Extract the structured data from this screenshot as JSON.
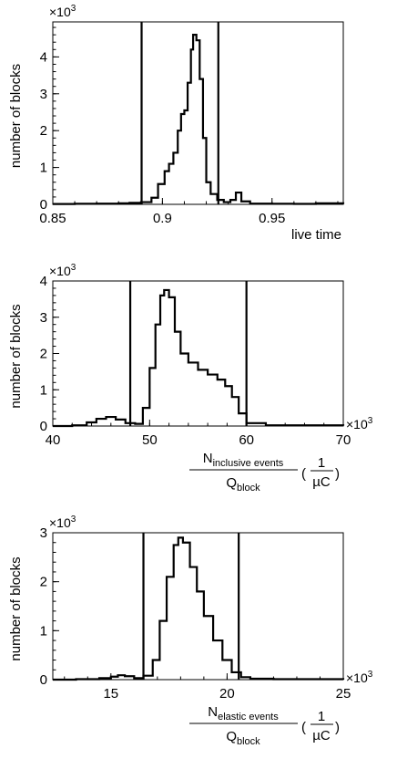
{
  "chart_data": [
    {
      "type": "line",
      "xlabel": "live time",
      "ylabel": "number of blocks",
      "y_multiplier": {
        "base": "×10",
        "exp": "3"
      },
      "x_multiplier": null,
      "xlim": [
        0.85,
        0.9825
      ],
      "ylim": [
        0,
        4.95
      ],
      "xticks": [
        "0.85",
        "0.9",
        "0.95"
      ],
      "xtick_values": [
        0.85,
        0.9,
        0.95
      ],
      "yticks": [
        "0",
        "1",
        "2",
        "3",
        "4"
      ],
      "ytick_values": [
        0,
        1,
        2,
        3,
        4
      ],
      "cut_lines": [
        0.8905,
        0.9255
      ],
      "x": [
        0.85,
        0.86,
        0.87,
        0.88,
        0.885,
        0.8905,
        0.895,
        0.898,
        0.901,
        0.903,
        0.905,
        0.907,
        0.9085,
        0.91,
        0.9115,
        0.913,
        0.914,
        0.9155,
        0.917,
        0.9185,
        0.92,
        0.922,
        0.925,
        0.928,
        0.931,
        0.9335,
        0.936,
        0.94,
        0.95,
        0.96,
        0.97,
        0.9825
      ],
      "values": [
        0.01,
        0.015,
        0.02,
        0.03,
        0.04,
        0.06,
        0.18,
        0.55,
        0.9,
        1.1,
        1.4,
        2.0,
        2.45,
        2.55,
        3.3,
        4.2,
        4.6,
        4.45,
        3.4,
        1.8,
        0.6,
        0.28,
        0.12,
        0.06,
        0.12,
        0.32,
        0.08,
        0.02,
        0.015,
        0.012,
        0.03,
        0.01
      ]
    },
    {
      "type": "line",
      "xlabel": {
        "numerator": "N",
        "numerator_sub": "inclusive events",
        "denominator": "Q",
        "denominator_sub": "block",
        "unit_numerator": "1",
        "unit_denominator": "µC"
      },
      "ylabel": "number of blocks",
      "y_multiplier": {
        "base": "×10",
        "exp": "3"
      },
      "x_multiplier": {
        "base": "×10",
        "exp": "3"
      },
      "xlim": [
        40,
        70
      ],
      "ylim": [
        0,
        4
      ],
      "xticks": [
        "40",
        "50",
        "60",
        "70"
      ],
      "xtick_values": [
        40,
        50,
        60,
        70
      ],
      "yticks": [
        "0",
        "1",
        "2",
        "3",
        "4"
      ],
      "ytick_values": [
        0,
        1,
        2,
        3,
        4
      ],
      "cut_lines": [
        48.0,
        60.0
      ],
      "x": [
        40,
        42,
        43.5,
        44.5,
        45.5,
        46.5,
        47.5,
        48.5,
        49.3,
        50,
        50.6,
        51.1,
        51.5,
        52,
        52.6,
        53.2,
        54,
        55,
        56,
        57,
        57.8,
        58.5,
        59.2,
        60,
        62,
        70
      ],
      "values": [
        0.0,
        0.02,
        0.1,
        0.2,
        0.25,
        0.18,
        0.08,
        0.06,
        0.5,
        1.6,
        2.8,
        3.6,
        3.75,
        3.55,
        2.6,
        2.0,
        1.75,
        1.55,
        1.42,
        1.28,
        1.1,
        0.8,
        0.35,
        0.08,
        0.02,
        0.01
      ]
    },
    {
      "type": "line",
      "xlabel": {
        "numerator": "N",
        "numerator_sub": "elastic events",
        "denominator": "Q",
        "denominator_sub": "block",
        "unit_numerator": "1",
        "unit_denominator": "µC"
      },
      "ylabel": "number of blocks",
      "y_multiplier": {
        "base": "×10",
        "exp": "3"
      },
      "x_multiplier": {
        "base": "×10",
        "exp": "3"
      },
      "xlim": [
        12.5,
        25
      ],
      "ylim": [
        0,
        3
      ],
      "xticks": [
        "15",
        "20",
        "25"
      ],
      "xtick_values": [
        15,
        20,
        25
      ],
      "yticks": [
        "0",
        "1",
        "2",
        "3"
      ],
      "ytick_values": [
        0,
        1,
        2,
        3
      ],
      "cut_lines": [
        16.4,
        20.5
      ],
      "x": [
        12.5,
        13.5,
        14.5,
        15.0,
        15.3,
        15.6,
        16.0,
        16.4,
        16.8,
        17.1,
        17.4,
        17.7,
        17.9,
        18.1,
        18.4,
        18.7,
        19.0,
        19.4,
        19.8,
        20.2,
        20.6,
        21.0,
        22,
        25
      ],
      "values": [
        0.0,
        0.01,
        0.03,
        0.06,
        0.09,
        0.07,
        0.03,
        0.08,
        0.4,
        1.2,
        2.1,
        2.75,
        2.9,
        2.8,
        2.3,
        1.8,
        1.3,
        0.8,
        0.4,
        0.15,
        0.05,
        0.02,
        0.01,
        0.0
      ]
    }
  ]
}
